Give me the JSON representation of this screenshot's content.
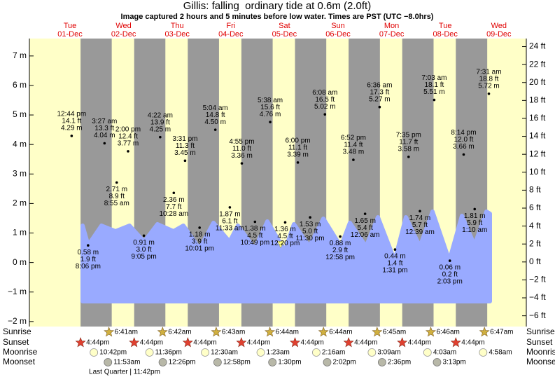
{
  "chart_data": {
    "type": "tide",
    "title": "Gillis: falling  ordinary tide at 0.6m (2.0ft)",
    "subtitle": "Image captured 2 hours and 5 minutes before low water. Times are PST (UTC −8.0hrs)",
    "ylim": [
      -2.17,
      7.59
    ],
    "yticks": [
      {
        "value": -2,
        "label": "−2 m"
      },
      {
        "value": -1,
        "label": "−1 m"
      },
      {
        "value": 0,
        "label": "0 m"
      },
      {
        "value": 1,
        "label": "1 m"
      },
      {
        "value": 2,
        "label": "2 m"
      },
      {
        "value": 3,
        "label": "3 m"
      },
      {
        "value": 4,
        "label": "4 m"
      },
      {
        "value": 5,
        "label": "5 m"
      },
      {
        "value": 6,
        "label": "6 m"
      },
      {
        "value": 7,
        "label": "7 m"
      }
    ],
    "y2lim": [
      -7.2,
      24.9
    ],
    "y2ticks": [
      {
        "value": -6,
        "label": "−6 ft"
      },
      {
        "value": -4,
        "label": "−4 ft"
      },
      {
        "value": -2,
        "label": "−2 ft"
      },
      {
        "value": 0,
        "label": "0 ft"
      },
      {
        "value": 2,
        "label": "2 ft"
      },
      {
        "value": 4,
        "label": "4 ft"
      },
      {
        "value": 6,
        "label": "6 ft"
      },
      {
        "value": 8,
        "label": "8 ft"
      },
      {
        "value": 10,
        "label": "10 ft"
      },
      {
        "value": 12,
        "label": "12 ft"
      },
      {
        "value": 14,
        "label": "14 ft"
      },
      {
        "value": 16,
        "label": "16 ft"
      },
      {
        "value": 18,
        "label": "18 ft"
      },
      {
        "value": 20,
        "label": "20 ft"
      },
      {
        "value": 22,
        "label": "22 ft"
      },
      {
        "value": 24,
        "label": "24 ft"
      }
    ],
    "row_labels": {
      "sunrise": "Sunrise",
      "sunset": "Sunset",
      "moonrise": "Moonrise",
      "moonset": "Moonset"
    },
    "moon_phase": "Last Quarter | 11:42pm",
    "days": [
      {
        "weekday": "Tue",
        "date": "01-Dec",
        "sunset": "4:44pm",
        "moonrise": "10:42pm",
        "tides": [
          {
            "time": "12:44 pm",
            "value": 4.29,
            "value_label": "4.29 m",
            "ft_label": "14.1 ft"
          },
          {
            "time": "8:06 pm",
            "value": 0.58,
            "value_label": "0.58 m",
            "ft_label": "1.9 ft"
          }
        ]
      },
      {
        "weekday": "Wed",
        "date": "02-Dec",
        "sunrise": "6:41am",
        "sunset": "4:44pm",
        "moonrise": "11:36pm",
        "moonset": "11:53am",
        "tides": [
          {
            "time": "3:27 am",
            "value": 4.04,
            "value_label": "4.04 m",
            "ft_label": "13.3 ft"
          },
          {
            "time": "8:55 am",
            "value": 2.71,
            "value_label": "2.71 m",
            "ft_label": "8.9 ft"
          },
          {
            "time": "2:00 pm",
            "value": 3.77,
            "value_label": "3.77 m",
            "ft_label": "12.4 ft"
          },
          {
            "time": "9:05 pm",
            "value": 0.91,
            "value_label": "0.91 m",
            "ft_label": "3.0 ft"
          }
        ]
      },
      {
        "weekday": "Thu",
        "date": "03-Dec",
        "sunrise": "6:42am",
        "sunset": "4:44pm",
        "moonset": "12:26pm",
        "tides": [
          {
            "time": "4:22 am",
            "value": 4.25,
            "value_label": "4.25 m",
            "ft_label": "13.9 ft"
          },
          {
            "time": "10:28 am",
            "value": 2.36,
            "value_label": "2.36 m",
            "ft_label": "7.7 ft"
          },
          {
            "time": "3:31 pm",
            "value": 3.45,
            "value_label": "3.45 m",
            "ft_label": "11.3 ft"
          },
          {
            "time": "10:01 pm",
            "value": 1.18,
            "value_label": "1.18 m",
            "ft_label": "3.9 ft"
          }
        ]
      },
      {
        "weekday": "Fri",
        "date": "04-Dec",
        "sunrise": "6:43am",
        "sunset": "4:44pm",
        "moonrise": "12:30am",
        "moonset": "12:58pm",
        "tides": [
          {
            "time": "5:04 am",
            "value": 4.5,
            "value_label": "4.50 m",
            "ft_label": "14.8 ft"
          },
          {
            "time": "11:33 am",
            "value": 1.87,
            "value_label": "1.87 m",
            "ft_label": "6.1 ft"
          },
          {
            "time": "4:55 pm",
            "value": 3.36,
            "value_label": "3.36 m",
            "ft_label": "11.0 ft"
          },
          {
            "time": "10:49 pm",
            "value": 1.38,
            "value_label": "1.38 m",
            "ft_label": "4.5 ft"
          }
        ]
      },
      {
        "weekday": "Sat",
        "date": "05-Dec",
        "sunrise": "6:44am",
        "sunset": "4:44pm",
        "moonrise": "1:23am",
        "moonset": "1:30pm",
        "tides": [
          {
            "time": "5:38 am",
            "value": 4.76,
            "value_label": "4.76 m",
            "ft_label": "15.6 ft"
          },
          {
            "time": "12:20 pm",
            "value": 1.36,
            "value_label": "1.36 m",
            "ft_label": "4.5 ft"
          },
          {
            "time": "6:00 pm",
            "value": 3.39,
            "value_label": "3.39 m",
            "ft_label": "11.1 ft"
          },
          {
            "time": "11:30 pm",
            "value": 1.53,
            "value_label": "1.53 m",
            "ft_label": "5.0 ft"
          }
        ]
      },
      {
        "weekday": "Sun",
        "date": "06-Dec",
        "sunrise": "6:44am",
        "sunset": "4:44pm",
        "moonrise": "2:16am",
        "moonset": "2:02pm",
        "tides": [
          {
            "time": "6:08 am",
            "value": 5.02,
            "value_label": "5.02 m",
            "ft_label": "16.5 ft"
          },
          {
            "time": "12:58 pm",
            "value": 0.88,
            "value_label": "0.88 m",
            "ft_label": "2.9 ft"
          },
          {
            "time": "6:52 pm",
            "value": 3.48,
            "value_label": "3.48 m",
            "ft_label": "11.4 ft"
          }
        ]
      },
      {
        "weekday": "Mon",
        "date": "07-Dec",
        "sunrise": "6:45am",
        "sunset": "4:44pm",
        "moonrise": "3:09am",
        "moonset": "2:36pm",
        "tides": [
          {
            "time": "12:06 am",
            "value": 1.65,
            "value_label": "1.65 m",
            "ft_label": "5.4 ft"
          },
          {
            "time": "6:36 am",
            "value": 5.27,
            "value_label": "5.27 m",
            "ft_label": "17.3 ft"
          },
          {
            "time": "1:31 pm",
            "value": 0.44,
            "value_label": "0.44 m",
            "ft_label": "1.4 ft"
          },
          {
            "time": "7:35 pm",
            "value": 3.58,
            "value_label": "3.58 m",
            "ft_label": "11.7 ft"
          }
        ]
      },
      {
        "weekday": "Tue",
        "date": "08-Dec",
        "sunrise": "6:46am",
        "sunset": "4:44pm",
        "moonrise": "4:03am",
        "moonset": "3:13pm",
        "tides": [
          {
            "time": "12:39 am",
            "value": 1.74,
            "value_label": "1.74 m",
            "ft_label": "5.7 ft"
          },
          {
            "time": "7:03 am",
            "value": 5.51,
            "value_label": "5.51 m",
            "ft_label": "18.1 ft"
          },
          {
            "time": "2:03 pm",
            "value": 0.06,
            "value_label": "0.06 m",
            "ft_label": "0.2 ft"
          },
          {
            "time": "8:14 pm",
            "value": 3.66,
            "value_label": "3.66 m",
            "ft_label": "12.0 ft"
          }
        ]
      },
      {
        "weekday": "Wed",
        "date": "09-Dec",
        "sunrise": "6:47am",
        "moonrise": "4:58am",
        "tides": [
          {
            "time": "1:10 am",
            "value": 1.81,
            "value_label": "1.81 m",
            "ft_label": "5.9 ft"
          },
          {
            "time": "7:31 am",
            "value": 5.72,
            "value_label": "5.72 m",
            "ft_label": "18.8 ft"
          }
        ]
      }
    ]
  }
}
